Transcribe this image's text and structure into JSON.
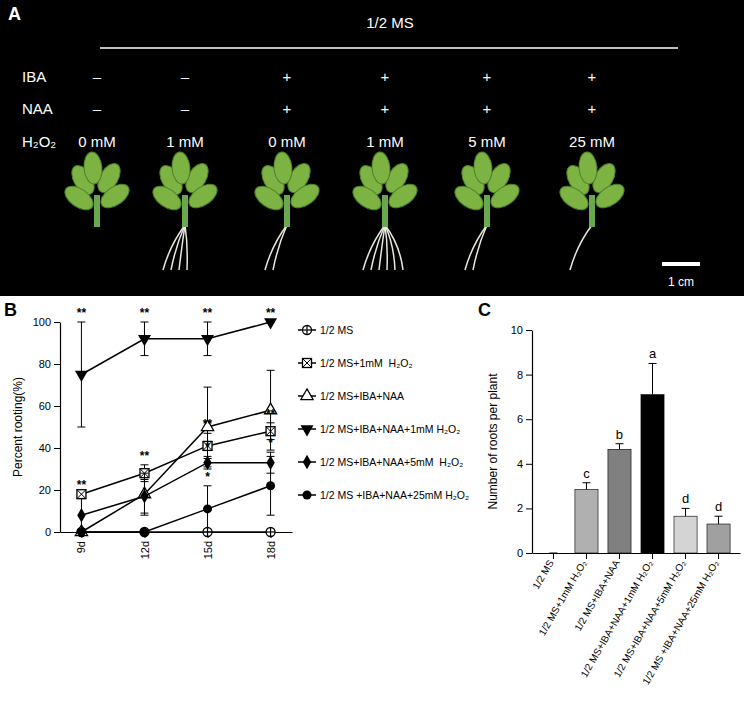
{
  "panel_a": {
    "label": "A",
    "header": "1/2 MS",
    "row_labels": [
      "IBA",
      "NAA",
      "H₂O₂"
    ],
    "rows": [
      [
        "–",
        "–",
        "+",
        "+",
        "+",
        "+"
      ],
      [
        "–",
        "–",
        "+",
        "+",
        "+",
        "+"
      ],
      [
        "0 mM",
        "1 mM",
        "0 mM",
        "1 mM",
        "5 mM",
        "25 mM"
      ]
    ],
    "scale_bar": "1 cm"
  },
  "chart_data": [
    {
      "panel_label": "B",
      "type": "line",
      "categories": [
        "9d",
        "12d",
        "15d",
        "18d"
      ],
      "y_label": "Percent rooting(%)",
      "ylim": [
        0,
        100
      ],
      "yticks": [
        0,
        20,
        40,
        60,
        80,
        100
      ],
      "legend": "right",
      "series": [
        {
          "name": "1/2 MS",
          "color": "#000000",
          "marker": "circle-cross",
          "values": [
            0,
            0,
            0,
            0
          ],
          "errors": [
            0,
            0,
            0,
            0
          ],
          "annotations": [
            null,
            null,
            null,
            null
          ]
        },
        {
          "name": "1/2 MS+1mM  H₂O₂",
          "color": "#000000",
          "marker": "square-x",
          "values": [
            18,
            28,
            41,
            48
          ],
          "errors": [
            0,
            4,
            6,
            4
          ],
          "annotations": [
            "**",
            "**",
            "**",
            "**"
          ]
        },
        {
          "name": "1/2 MS+IBA+NAA",
          "color": "#000000",
          "marker": "triangle-open",
          "values": [
            0,
            18,
            50,
            58
          ],
          "errors": [
            0,
            10,
            19,
            19
          ],
          "annotations": [
            null,
            null,
            null,
            null
          ]
        },
        {
          "name": "1/2 MS+IBA+NAA+1mM H₂O₂",
          "color": "#000000",
          "marker": "triangle-down",
          "values": [
            75,
            92,
            92,
            100
          ],
          "errors": [
            25,
            8,
            8,
            0
          ],
          "annotations": [
            "**",
            "**",
            "**",
            "**"
          ]
        },
        {
          "name": "1/2 MS+IBA+NAA+5mM  H₂O₂",
          "color": "#000000",
          "marker": "diamond",
          "values": [
            8,
            17,
            33,
            33
          ],
          "errors": [
            8,
            8,
            3,
            5
          ],
          "annotations": [
            null,
            null,
            "*",
            "*"
          ]
        },
        {
          "name": "1/2 MS +IBA+NAA+25mM H₂O₂",
          "color": "#000000",
          "marker": "circle",
          "values": [
            0,
            0,
            11,
            22
          ],
          "errors": [
            0,
            0,
            11,
            14
          ],
          "annotations": [
            null,
            null,
            "*",
            null
          ]
        }
      ]
    },
    {
      "panel_label": "C",
      "type": "bar",
      "categories": [
        "1/2 MS",
        "1/2 MS+1mM H₂O₂",
        "1/2 MS+IBA+NAA",
        "1/2 MS+IBA+NAA+1mM H₂O₂",
        "1/2 MS+IBA+NAA+5mM H₂O₂",
        "1/2 MS +IBA+NAA+25mM H₂O₂"
      ],
      "values": [
        0,
        2.85,
        4.65,
        7.1,
        1.65,
        1.3
      ],
      "errors": [
        0,
        0.3,
        0.25,
        1.4,
        0.35,
        0.35
      ],
      "annotations": [
        null,
        "c",
        "b",
        "a",
        "d",
        "d"
      ],
      "colors": [
        "#ffffff",
        "#b0b0b0",
        "#808080",
        "#000000",
        "#d4d4d4",
        "#a0a0a0"
      ],
      "y_label": "Number of roots per plant",
      "ylim": [
        0,
        10
      ],
      "yticks": [
        0,
        2,
        4,
        6,
        8,
        10
      ]
    }
  ]
}
